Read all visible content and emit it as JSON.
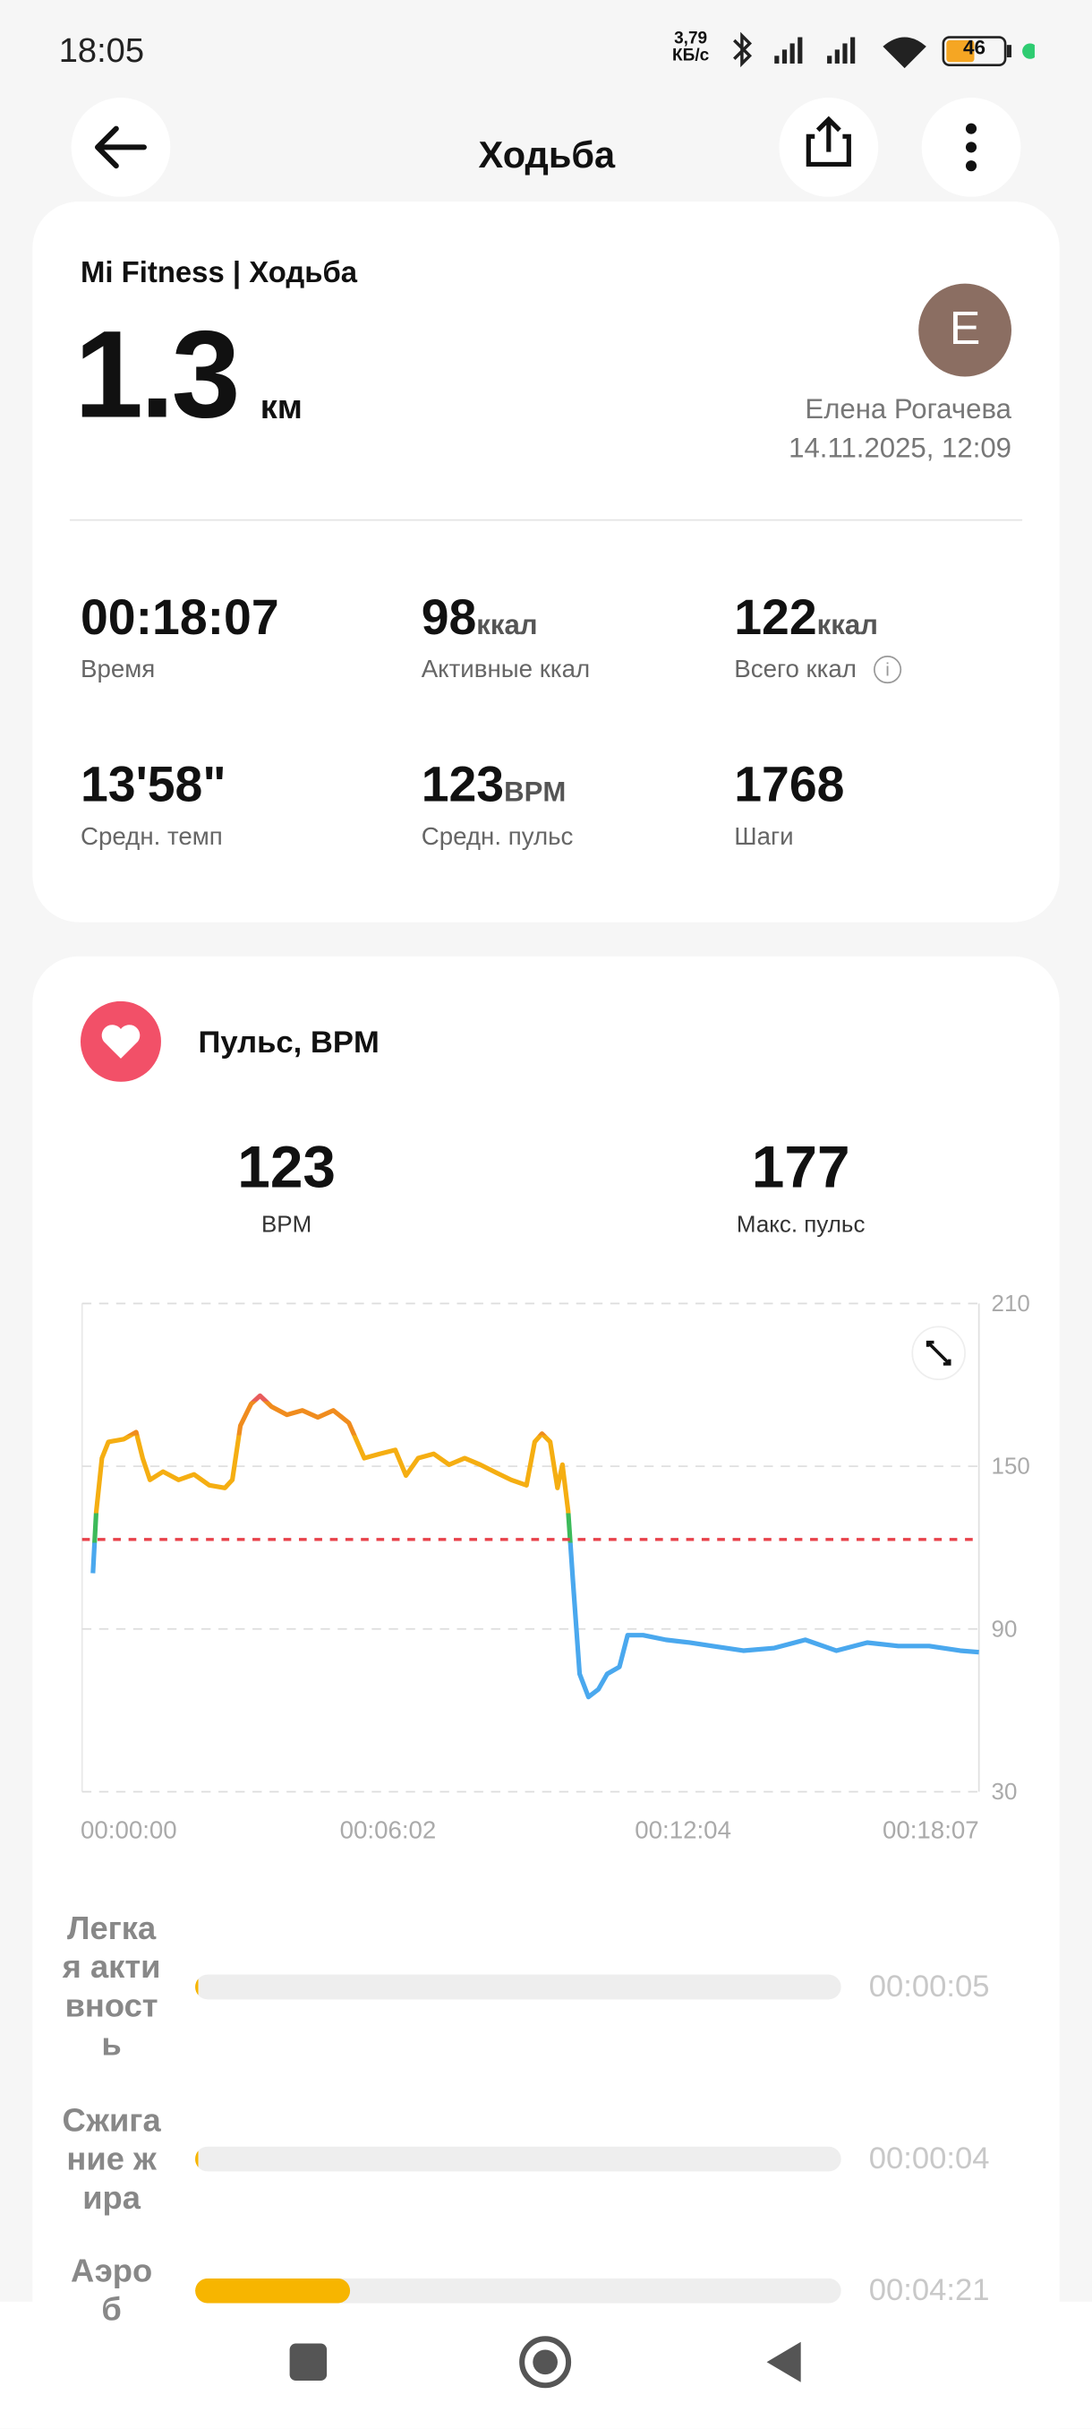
{
  "status": {
    "time": "18:05",
    "speed": "3,79",
    "speed_unit": "КБ/с",
    "battery": "46"
  },
  "header": {
    "title": "Ходьба"
  },
  "summary": {
    "source": "Mi Fitness | Ходьба",
    "distance": "1.3",
    "distance_unit": "км",
    "avatar": "E",
    "user": "Елена Рогачева",
    "datetime": "14.11.2025, 12:09",
    "stats": [
      {
        "value": "00:18:07",
        "label": "Время"
      },
      {
        "value": "98",
        "unit": "ккал",
        "label": "Активные ккал"
      },
      {
        "value": "122",
        "unit": "ккал",
        "label": "Всего ккал"
      },
      {
        "value": "13'58\"",
        "label": "Средн. темп"
      },
      {
        "value": "123",
        "unit": "BPM",
        "label": "Средн. пульс"
      },
      {
        "value": "1768",
        "label": "Шаги"
      }
    ]
  },
  "heart": {
    "title": "Пульс, BPM",
    "summary": [
      {
        "value": 123,
        "label": "BPM"
      },
      {
        "value": 177,
        "label": "Макс. пульс"
      }
    ],
    "chart": {
      "type": "line",
      "x": [
        0,
        4,
        11,
        19,
        38,
        53,
        61,
        70,
        86,
        105,
        124,
        143,
        162,
        171,
        181,
        194,
        205,
        219,
        238,
        257,
        276,
        295,
        314,
        333,
        352,
        371,
        384,
        399,
        418,
        437,
        456,
        475,
        494,
        513,
        532,
        542,
        551,
        561,
        570,
        576,
        583,
        589,
        597,
        608,
        620,
        631,
        646,
        656,
        675,
        703,
        732,
        760,
        798,
        836,
        874,
        912,
        950,
        988,
        1026,
        1064,
        1087
      ],
      "values": [
        110.6,
        133,
        153,
        159,
        160,
        162.6,
        153,
        145,
        148,
        145,
        147,
        143,
        142,
        145,
        165,
        173,
        176,
        172,
        169,
        170.6,
        168,
        170.6,
        166,
        153,
        154.6,
        156,
        146.6,
        153,
        154.6,
        150.6,
        153,
        150.6,
        147.7,
        145,
        143,
        159,
        162,
        159,
        142,
        150.6,
        133.4,
        107.7,
        73.4,
        64.9,
        67.7,
        73.4,
        76,
        87.7,
        87.7,
        86,
        85,
        83.7,
        82,
        83,
        86,
        82,
        85,
        83.7,
        83.7,
        82,
        81.4
      ],
      "xlim": [
        0,
        1087
      ],
      "ylim": [
        30,
        210
      ],
      "yticks": [
        30,
        90,
        150,
        210
      ],
      "xticks": [
        {
          "value": 0,
          "label": "00:00:00"
        },
        {
          "value": 362,
          "label": "00:06:02"
        },
        {
          "value": 724,
          "label": "00:12:04"
        },
        {
          "value": 1087,
          "label": "00:18:07"
        }
      ],
      "grid": true
    }
  },
  "zones": [
    {
      "name": "Легкая активность",
      "duration": "00:00:05"
    },
    {
      "name": "Сжигание жира",
      "duration": "00:00:04"
    },
    {
      "name": "Аэроб",
      "duration": "00:04:21"
    }
  ]
}
